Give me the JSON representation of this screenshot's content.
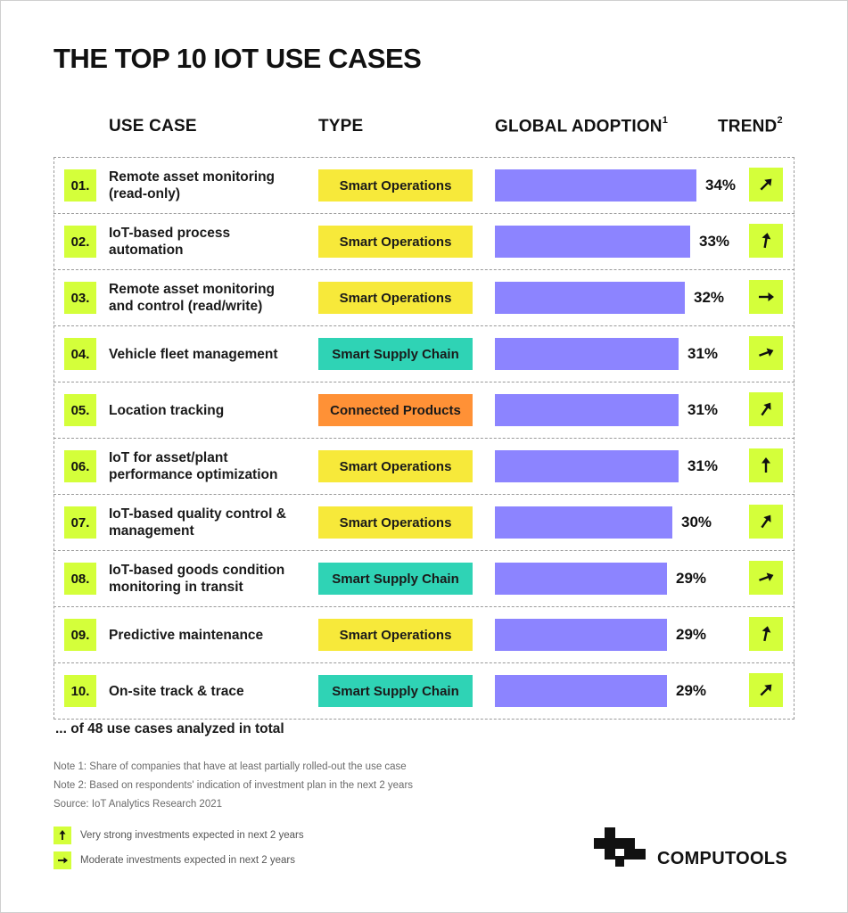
{
  "title": "THE TOP 10 IOT USE CASES",
  "headers": {
    "use_case": "USE CASE",
    "type": "TYPE",
    "global_adoption": "GLOBAL ADOPTION",
    "global_adoption_note": "1",
    "trend": "TREND",
    "trend_note": "2"
  },
  "colors": {
    "lime": "#d4ff3a",
    "bar": "#8c84ff",
    "smart_operations": "#f7e93a",
    "smart_supply_chain": "#2fd3b5",
    "connected_products": "#ff9136"
  },
  "rows": [
    {
      "num": "01.",
      "use_case": [
        "Remote asset monitoring",
        "(read-only)"
      ],
      "type": "Smart Operations",
      "type_color": "#f7e93a",
      "adoption": 34,
      "pct_label": "34%",
      "trend_icon": "arrow-up-right-icon",
      "trend_angle": 45
    },
    {
      "num": "02.",
      "use_case": [
        "IoT-based process",
        "automation"
      ],
      "type": "Smart Operations",
      "type_color": "#f7e93a",
      "adoption": 33,
      "pct_label": "33%",
      "trend_icon": "arrow-up-icon",
      "trend_angle": 10
    },
    {
      "num": "03.",
      "use_case": [
        "Remote asset monitoring",
        "and control (read/write)"
      ],
      "type": "Smart Operations",
      "type_color": "#f7e93a",
      "adoption": 32,
      "pct_label": "32%",
      "trend_icon": "arrow-right-icon",
      "trend_angle": 90
    },
    {
      "num": "04.",
      "use_case": [
        "Vehicle fleet management"
      ],
      "type": "Smart Supply Chain",
      "type_color": "#2fd3b5",
      "adoption": 31,
      "pct_label": "31%",
      "trend_icon": "arrow-right-icon",
      "trend_angle": 70
    },
    {
      "num": "05.",
      "use_case": [
        "Location tracking"
      ],
      "type": "Connected Products",
      "type_color": "#ff9136",
      "adoption": 31,
      "pct_label": "31%",
      "trend_icon": "arrow-up-right-icon",
      "trend_angle": 35
    },
    {
      "num": "06.",
      "use_case": [
        "IoT for asset/plant",
        "performance optimization"
      ],
      "type": "Smart Operations",
      "type_color": "#f7e93a",
      "adoption": 31,
      "pct_label": "31%",
      "trend_icon": "arrow-up-icon",
      "trend_angle": 0
    },
    {
      "num": "07.",
      "use_case": [
        "IoT-based quality control &",
        "management"
      ],
      "type": "Smart Operations",
      "type_color": "#f7e93a",
      "adoption": 30,
      "pct_label": "30%",
      "trend_icon": "arrow-up-right-icon",
      "trend_angle": 35
    },
    {
      "num": "08.",
      "use_case": [
        "IoT-based goods condition",
        "monitoring in transit"
      ],
      "type": "Smart Supply Chain",
      "type_color": "#2fd3b5",
      "adoption": 29,
      "pct_label": "29%",
      "trend_icon": "arrow-right-icon",
      "trend_angle": 70
    },
    {
      "num": "09.",
      "use_case": [
        "Predictive maintenance"
      ],
      "type": "Smart Operations",
      "type_color": "#f7e93a",
      "adoption": 29,
      "pct_label": "29%",
      "trend_icon": "arrow-up-icon",
      "trend_angle": 12
    },
    {
      "num": "10.",
      "use_case": [
        "On-site track & trace"
      ],
      "type": "Smart Supply Chain",
      "type_color": "#2fd3b5",
      "adoption": 29,
      "pct_label": "29%",
      "trend_icon": "arrow-up-right-icon",
      "trend_angle": 45
    }
  ],
  "chart_data": {
    "type": "bar",
    "categories": [
      "Remote asset monitoring (read-only)",
      "IoT-based process automation",
      "Remote asset monitoring and control (read/write)",
      "Vehicle fleet management",
      "Location tracking",
      "IoT for asset/plant performance optimization",
      "IoT-based quality control & management",
      "IoT-based goods condition monitoring in transit",
      "Predictive maintenance",
      "On-site track & trace"
    ],
    "values": [
      34,
      33,
      32,
      31,
      31,
      31,
      30,
      29,
      29,
      29
    ],
    "title": "THE TOP 10 IOT USE CASES",
    "xlabel": "",
    "ylabel": "GLOBAL ADOPTION",
    "orientation": "horizontal",
    "unit": "%"
  },
  "footer": {
    "total": "... of 48 use cases analyzed in total",
    "note1": "Note 1: Share of companies that have at least partially rolled-out the use case",
    "note2": "Note 2: Based on respondents' indication of investment plan in the next 2 years",
    "source": "Source: IoT Analytics Research 2021",
    "legend_strong": "Very strong investments expected in next 2 years",
    "legend_moderate": "Moderate investments expected in next 2 years"
  },
  "brand": {
    "name": "COMPUTOOLS",
    "logo_icon": "computools-logo-icon"
  }
}
